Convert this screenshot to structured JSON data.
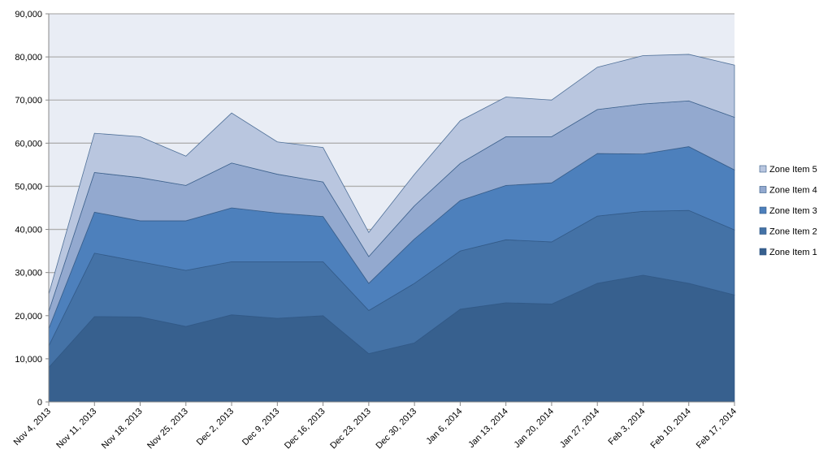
{
  "chart_data": {
    "type": "area",
    "stacked": true,
    "title": "",
    "xlabel": "",
    "ylabel": "",
    "ylim": [
      0,
      90000
    ],
    "yticks": [
      "0",
      "10,000",
      "20,000",
      "30,000",
      "40,000",
      "50,000",
      "60,000",
      "70,000",
      "80,000",
      "90,000"
    ],
    "grid": true,
    "legend_position": "right",
    "categories": [
      "Nov 4, 2013",
      "Nov 11, 2013",
      "Nov 18, 2013",
      "Nov 25, 2013",
      "Dec 2, 2013",
      "Dec 9, 2013",
      "Dec 16, 2013",
      "Dec 23, 2013",
      "Dec 30, 2013",
      "Jan 6, 2014",
      "Jan 13, 2014",
      "Jan 20, 2014",
      "Jan 27, 2014",
      "Feb 3, 2014",
      "Feb 10, 2014",
      "Feb 17, 2014"
    ],
    "series": [
      {
        "name": "Zone Item 1",
        "color": "#37608e",
        "values": [
          8000,
          19800,
          19700,
          17500,
          20200,
          19400,
          20000,
          11200,
          13700,
          21500,
          23000,
          22700,
          27500,
          29400,
          27500,
          24800
        ]
      },
      {
        "name": "Zone Item 2",
        "color": "#4472a6",
        "values": [
          5000,
          14700,
          12800,
          13000,
          12300,
          13100,
          12500,
          10000,
          13800,
          13500,
          14600,
          14400,
          15600,
          14800,
          16900,
          15100
        ]
      },
      {
        "name": "Zone Item 3",
        "color": "#4d80bc",
        "values": [
          4000,
          9500,
          9500,
          11500,
          12500,
          11300,
          10500,
          6300,
          10300,
          11700,
          12600,
          13700,
          14500,
          13300,
          14800,
          13900
        ]
      },
      {
        "name": "Zone Item 4",
        "color": "#93a9cf",
        "values": [
          4000,
          9200,
          10000,
          8200,
          10400,
          9000,
          8000,
          6200,
          7700,
          8600,
          11300,
          10700,
          10200,
          11600,
          10600,
          12200
        ]
      },
      {
        "name": "Zone Item 5",
        "color": "#b9c6df",
        "values": [
          4000,
          9100,
          9500,
          6800,
          11600,
          7500,
          8000,
          5600,
          7300,
          9900,
          9200,
          8500,
          9800,
          11200,
          10800,
          12100
        ]
      }
    ],
    "plot_background": "#e9edf5",
    "line_color": "#2f5683"
  }
}
